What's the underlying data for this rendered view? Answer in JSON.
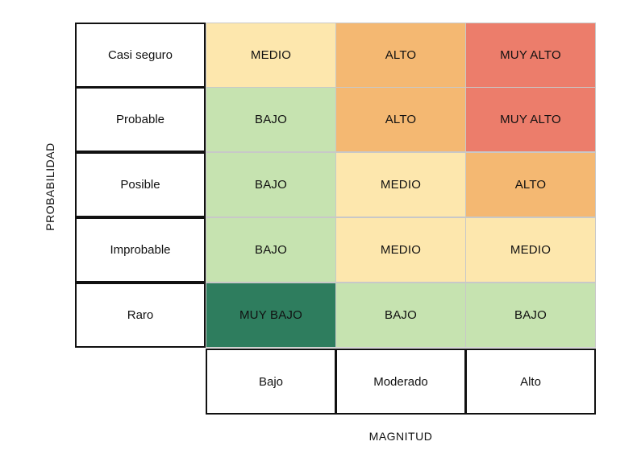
{
  "axes": {
    "y_label": "PROBABILIDAD",
    "x_label": "MAGNITUD"
  },
  "rows": [
    {
      "label": "Casi seguro",
      "cells": [
        "MEDIO",
        "ALTO",
        "MUY ALTO"
      ]
    },
    {
      "label": "Probable",
      "cells": [
        "BAJO",
        "ALTO",
        "MUY ALTO"
      ]
    },
    {
      "label": "Posible",
      "cells": [
        "BAJO",
        "MEDIO",
        "ALTO"
      ]
    },
    {
      "label": "Improbable",
      "cells": [
        "BAJO",
        "MEDIO",
        "MEDIO"
      ]
    },
    {
      "label": "Raro",
      "cells": [
        "MUY BAJO",
        "BAJO",
        "BAJO"
      ]
    }
  ],
  "columns": [
    "Bajo",
    "Moderado",
    "Alto"
  ],
  "level_colors": {
    "MUY BAJO": "#2e7d5e",
    "BAJO": "#c6e3b0",
    "MEDIO": "#fde7ad",
    "ALTO": "#f4b872",
    "MUY ALTO": "#ec7d6b"
  }
}
